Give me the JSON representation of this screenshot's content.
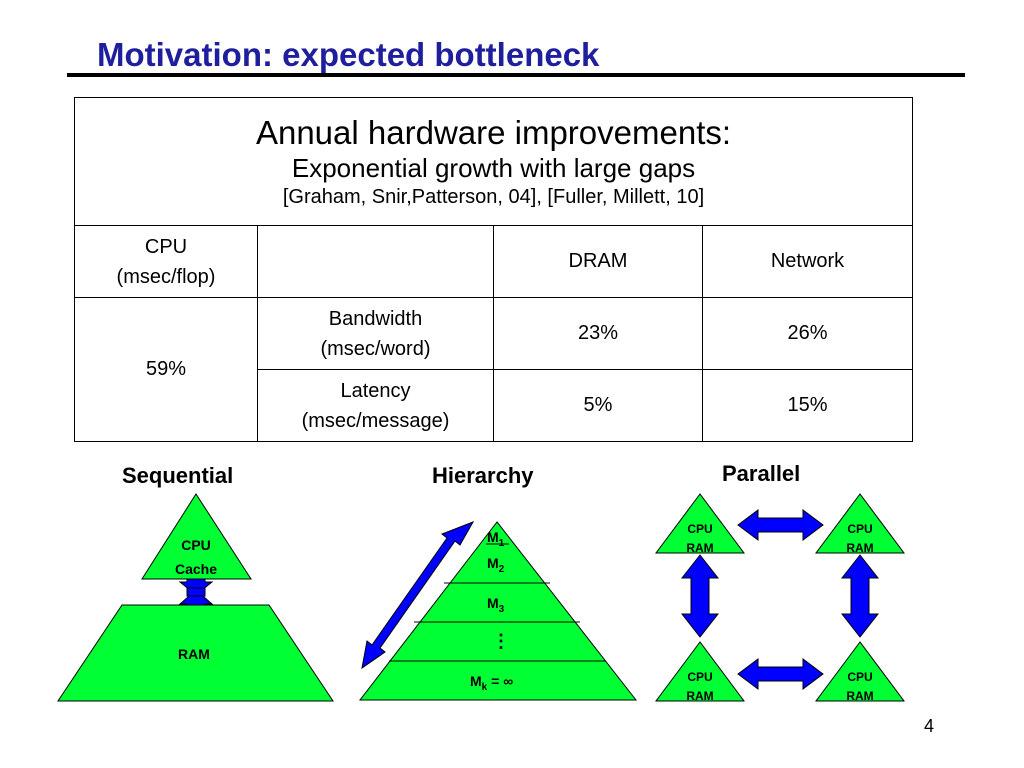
{
  "slide": {
    "title": "Motivation: expected bottleneck",
    "page_number": "4"
  },
  "table": {
    "header_line1": "Annual hardware improvements:",
    "header_line2": "Exponential growth with large gaps",
    "header_line3": "[Graham, Snir,Patterson, 04], [Fuller, Millett, 10]",
    "cpu_label_line1": "CPU",
    "cpu_label_line2": "(msec/flop)",
    "dram_label": "DRAM",
    "network_label": "Network",
    "cpu_value": "59%",
    "bandwidth_line1": "Bandwidth",
    "bandwidth_line2": "(msec/word)",
    "bandwidth_dram": "23%",
    "bandwidth_network": "26%",
    "latency_line1": "Latency",
    "latency_line2": "(msec/message)",
    "latency_dram": "5%",
    "latency_network": "15%"
  },
  "sequential": {
    "title": "Sequential",
    "top_line1": "CPU",
    "top_line2": "Cache",
    "bottom": "RAM"
  },
  "hierarchy": {
    "title": "Hierarchy",
    "m1_base": "M",
    "m1_sub": "1",
    "m2_base": "M",
    "m2_sub": "2",
    "m3_base": "M",
    "m3_sub": "3",
    "dots": "⋮",
    "mk_base": "M",
    "mk_sub": "k",
    "mk_rest": " = ∞"
  },
  "parallel": {
    "title": "Parallel",
    "nodes": [
      {
        "line1": "CPU",
        "line2": "RAM"
      },
      {
        "line1": "CPU",
        "line2": "RAM"
      },
      {
        "line1": "CPU",
        "line2": "RAM"
      },
      {
        "line1": "CPU",
        "line2": "RAM"
      }
    ]
  },
  "colors": {
    "title": "#1f1f9e",
    "green": "#00ff33",
    "blue": "#0000ff"
  }
}
